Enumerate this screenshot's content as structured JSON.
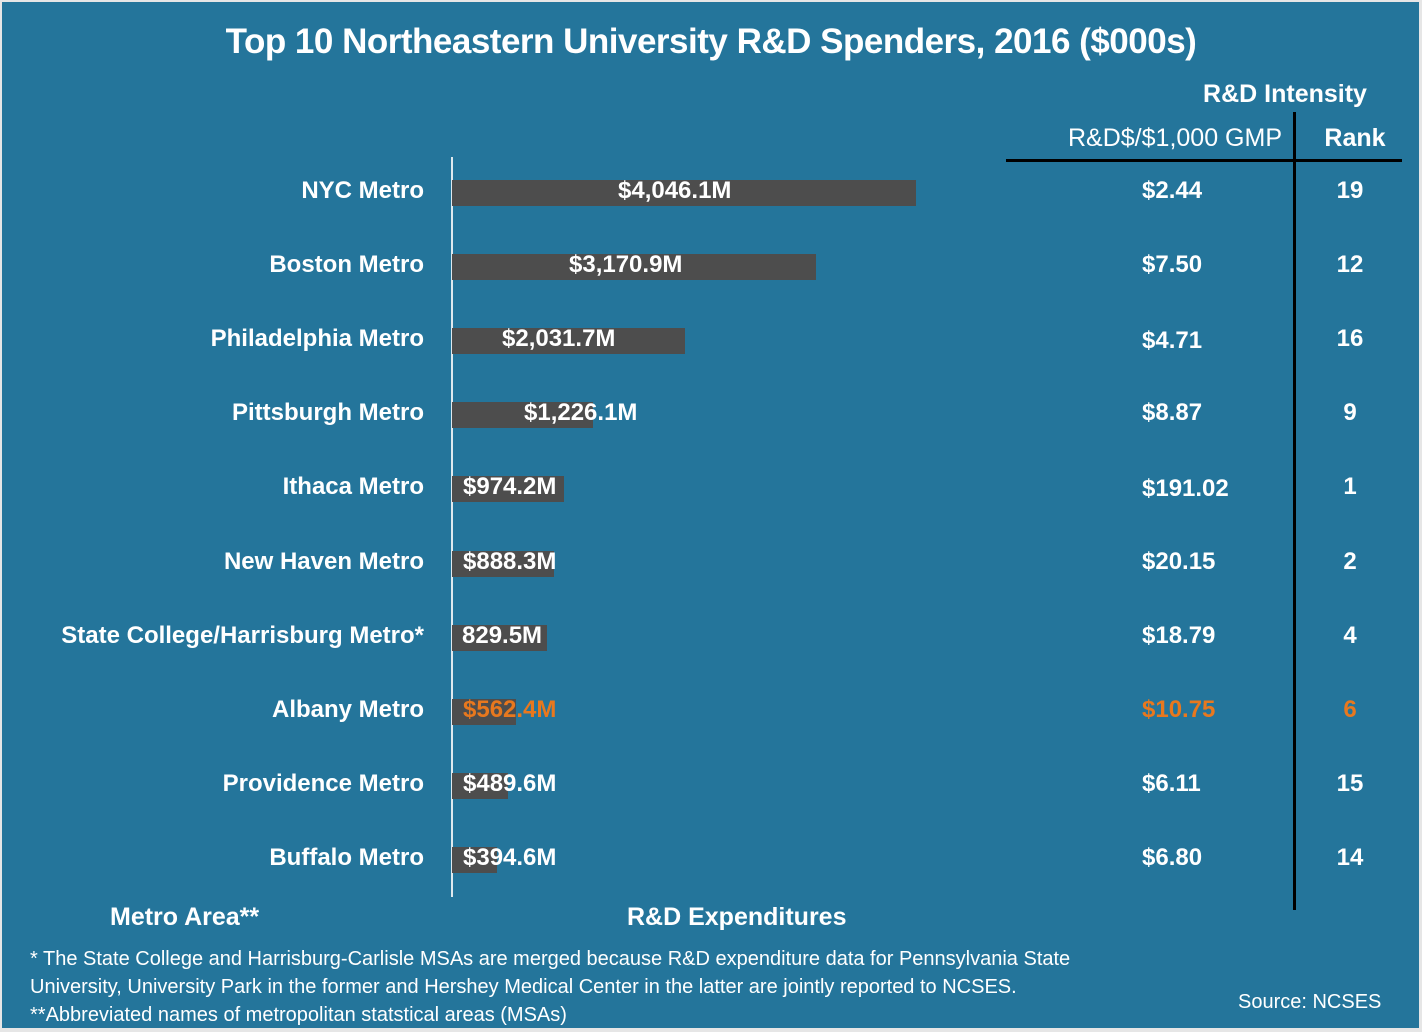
{
  "chart_data": {
    "type": "bar",
    "orientation": "horizontal",
    "title": "Top 10 Northeastern University R&D Spenders, 2016 ($000s)",
    "xlabel": "R&D Expenditures",
    "ylabel": "Metro Area**",
    "units": "$ millions",
    "categories": [
      "NYC Metro",
      "Boston Metro",
      "Philadelphia Metro",
      "Pittsburgh Metro",
      "Ithaca Metro",
      "New Haven Metro",
      "State College/Harrisburg Metro*",
      "Albany Metro",
      "Providence Metro",
      "Buffalo Metro"
    ],
    "values": [
      4046.1,
      3170.9,
      2031.7,
      1226.1,
      974.2,
      888.3,
      829.5,
      562.4,
      489.6,
      394.6
    ],
    "value_labels": [
      "$4,046.1M",
      "$3,170.9M",
      "$2,031.7M",
      "$1,226.1M",
      "$974.2M",
      "$888.3M",
      "829.5M",
      "$562.4M",
      "$489.6M",
      "$394.6M"
    ],
    "highlight_index": 7,
    "colors": {
      "background": "#24759b",
      "bar": "#4d4d4d",
      "text": "#ffffff",
      "highlight": "#e8781e"
    },
    "table": {
      "group_header": "R&D Intensity",
      "columns": [
        "R&D$/$1,000 GMP",
        "Rank"
      ],
      "ratio": [
        "$2.44",
        "$7.50",
        "$4.71",
        "$8.87",
        "$191.02",
        "$20.15",
        "$18.79",
        "$10.75",
        "$6.11",
        "$6.80"
      ],
      "rank": [
        "19",
        "12",
        "16",
        "9",
        "1",
        "2",
        "4",
        "6",
        "15",
        "14"
      ]
    }
  },
  "footnotes": {
    "note1_line1": "* The State College and Harrisburg-Carlisle MSAs are merged because R&D expenditure data for Pennsylvania State",
    "note1_line2": "University, University Park in the former and Hershey Medical Center in the latter are jointly reported to NCSES.",
    "note2": "**Abbreviated names of metropolitan statstical areas (MSAs)",
    "source": "Source: NCSES"
  }
}
